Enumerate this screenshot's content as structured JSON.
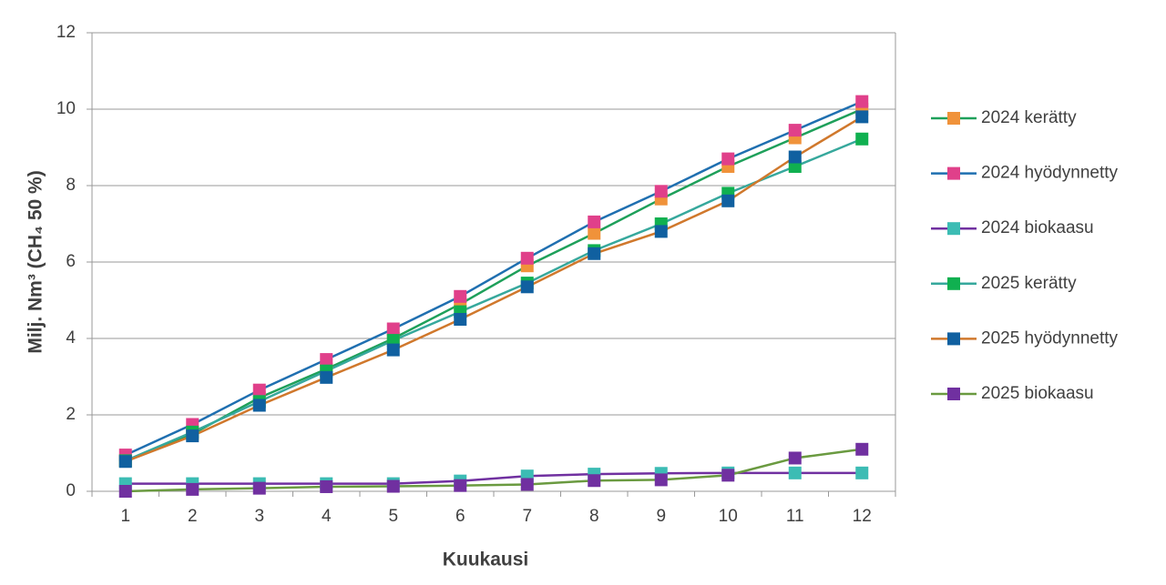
{
  "chart_data": {
    "type": "line",
    "x_label": "Kuukausi",
    "y_label": "Milj. Nm³ (CH₄ 50 %)",
    "categories": [
      "1",
      "2",
      "3",
      "4",
      "5",
      "6",
      "7",
      "8",
      "9",
      "10",
      "11",
      "12"
    ],
    "ylim": [
      0,
      12
    ],
    "yticks": [
      0,
      2,
      4,
      6,
      8,
      10,
      12
    ],
    "grid": true,
    "legend": "right",
    "series": [
      {
        "name": "2024 kerätty",
        "color": "#1ea05a",
        "marker_color": "#f0923a",
        "values": [
          0.8,
          1.5,
          2.45,
          3.2,
          4.0,
          4.9,
          5.9,
          6.75,
          7.65,
          8.5,
          9.25,
          10.0
        ]
      },
      {
        "name": "2024 hyödynnetty",
        "color": "#1f6fb0",
        "marker_color": "#e0408a",
        "values": [
          0.95,
          1.75,
          2.65,
          3.45,
          4.25,
          5.1,
          6.1,
          7.05,
          7.85,
          8.7,
          9.45,
          10.2
        ]
      },
      {
        "name": "2024 biokaasu",
        "color": "#7030a0",
        "marker_color": "#3cbcb4",
        "values": [
          0.2,
          0.2,
          0.2,
          0.2,
          0.2,
          0.27,
          0.4,
          0.45,
          0.47,
          0.48,
          0.48,
          0.48
        ]
      },
      {
        "name": "2025 kerätty",
        "color": "#36a89c",
        "marker_color": "#10b050",
        "values": [
          0.8,
          1.55,
          2.35,
          3.15,
          3.95,
          4.7,
          5.45,
          6.3,
          7.0,
          7.8,
          8.5,
          9.22
        ]
      },
      {
        "name": "2025 hyödynnetty",
        "color": "#d0782c",
        "marker_color": "#1060a0",
        "values": [
          0.78,
          1.45,
          2.25,
          2.98,
          3.7,
          4.5,
          5.35,
          6.22,
          6.8,
          7.6,
          8.75,
          9.8
        ]
      },
      {
        "name": "2025 biokaasu",
        "color": "#6a9a40",
        "marker_color": "#7030a0",
        "values": [
          0.0,
          0.05,
          0.08,
          0.12,
          0.13,
          0.15,
          0.18,
          0.28,
          0.3,
          0.42,
          0.87,
          1.1
        ]
      }
    ]
  }
}
